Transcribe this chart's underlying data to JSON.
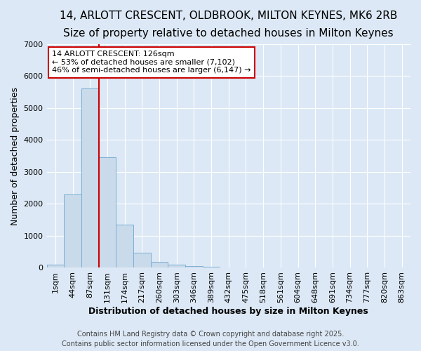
{
  "title1": "14, ARLOTT CRESCENT, OLDBROOK, MILTON KEYNES, MK6 2RB",
  "title2": "Size of property relative to detached houses in Milton Keynes",
  "xlabel": "Distribution of detached houses by size in Milton Keynes",
  "ylabel": "Number of detached properties",
  "footer1": "Contains HM Land Registry data © Crown copyright and database right 2025.",
  "footer2": "Contains public sector information licensed under the Open Government Licence v3.0.",
  "bin_labels": [
    "1sqm",
    "44sqm",
    "87sqm",
    "131sqm",
    "174sqm",
    "217sqm",
    "260sqm",
    "303sqm",
    "346sqm",
    "389sqm",
    "432sqm",
    "475sqm",
    "518sqm",
    "561sqm",
    "604sqm",
    "648sqm",
    "691sqm",
    "734sqm",
    "777sqm",
    "820sqm",
    "863sqm"
  ],
  "bin_values": [
    100,
    2300,
    5600,
    3450,
    1350,
    480,
    180,
    100,
    50,
    30,
    10,
    0,
    0,
    0,
    0,
    0,
    0,
    0,
    0,
    0,
    0
  ],
  "bar_color": "#c9daea",
  "bar_edge_color": "#7bafd4",
  "vline_color": "#cc0000",
  "vline_x_index": 2.5,
  "annotation_line1": "14 ARLOTT CRESCENT: 126sqm",
  "annotation_line2": "← 53% of detached houses are smaller (7,102)",
  "annotation_line3": "46% of semi-detached houses are larger (6,147) →",
  "annotation_box_facecolor": "#ffffff",
  "annotation_box_edgecolor": "#cc0000",
  "ylim": [
    0,
    7000
  ],
  "yticks": [
    0,
    1000,
    2000,
    3000,
    4000,
    5000,
    6000,
    7000
  ],
  "bg_color": "#dce8f5",
  "grid_color": "#ffffff",
  "title1_fontsize": 11,
  "title2_fontsize": 9,
  "axis_label_fontsize": 9,
  "tick_fontsize": 8,
  "footer_fontsize": 7,
  "annotation_fontsize": 8
}
